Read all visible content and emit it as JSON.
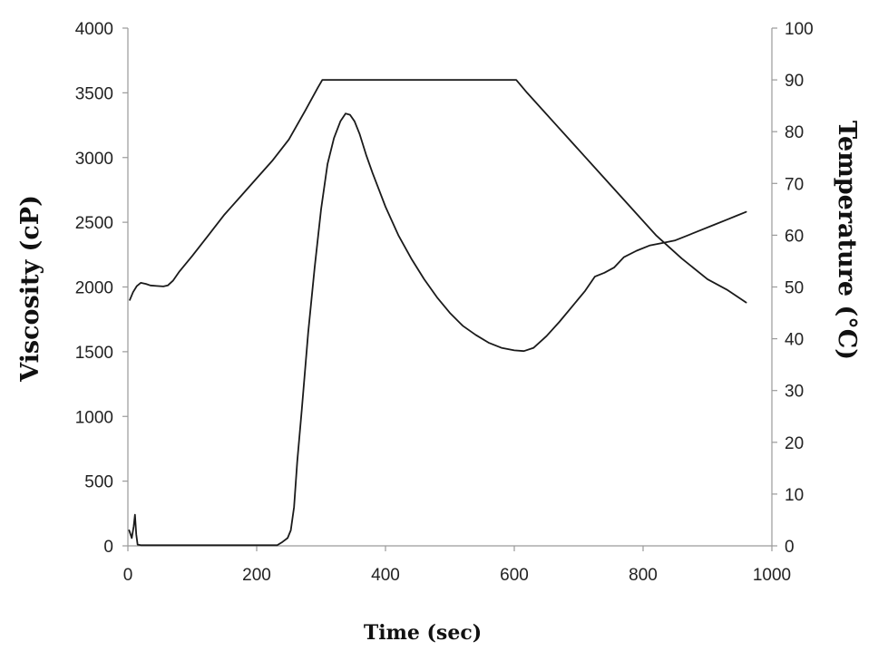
{
  "chart_data": {
    "type": "line",
    "title": "",
    "xlabel": "Time (sec)",
    "ylabel": "Viscosity (cP)",
    "y2label": "Temperature (°C)",
    "xlim": [
      0,
      1000
    ],
    "ylim": [
      0,
      4000
    ],
    "y2lim": [
      0,
      100
    ],
    "xticks": [
      0,
      200,
      400,
      600,
      800,
      1000
    ],
    "yticks": [
      0,
      500,
      1000,
      1500,
      2000,
      2500,
      3000,
      3500,
      4000
    ],
    "y2ticks": [
      0,
      10,
      20,
      30,
      40,
      50,
      60,
      70,
      80,
      90,
      100
    ],
    "grid": false,
    "legend": "none",
    "series": [
      {
        "axis": "left",
        "points": [
          [
            2,
            120
          ],
          [
            6,
            60
          ],
          [
            9,
            150
          ],
          [
            11,
            240
          ],
          [
            13,
            90
          ],
          [
            15,
            10
          ],
          [
            20,
            5
          ],
          [
            100,
            5
          ],
          [
            200,
            5
          ],
          [
            232,
            5
          ],
          [
            240,
            30
          ],
          [
            248,
            60
          ],
          [
            253,
            120
          ],
          [
            258,
            300
          ],
          [
            263,
            650
          ],
          [
            270,
            1050
          ],
          [
            280,
            1650
          ],
          [
            290,
            2150
          ],
          [
            300,
            2600
          ],
          [
            310,
            2950
          ],
          [
            320,
            3150
          ],
          [
            330,
            3280
          ],
          [
            338,
            3340
          ],
          [
            345,
            3330
          ],
          [
            352,
            3280
          ],
          [
            360,
            3180
          ],
          [
            370,
            3020
          ],
          [
            380,
            2880
          ],
          [
            390,
            2750
          ],
          [
            400,
            2620
          ],
          [
            420,
            2400
          ],
          [
            440,
            2220
          ],
          [
            460,
            2060
          ],
          [
            480,
            1920
          ],
          [
            500,
            1800
          ],
          [
            520,
            1700
          ],
          [
            540,
            1630
          ],
          [
            560,
            1570
          ],
          [
            580,
            1530
          ],
          [
            600,
            1510
          ],
          [
            615,
            1505
          ],
          [
            630,
            1530
          ],
          [
            650,
            1620
          ],
          [
            670,
            1730
          ],
          [
            690,
            1850
          ],
          [
            710,
            1970
          ],
          [
            725,
            2080
          ],
          [
            740,
            2110
          ],
          [
            755,
            2150
          ],
          [
            770,
            2230
          ],
          [
            790,
            2280
          ],
          [
            810,
            2320
          ],
          [
            830,
            2340
          ],
          [
            850,
            2360
          ],
          [
            870,
            2400
          ],
          [
            890,
            2440
          ],
          [
            910,
            2480
          ],
          [
            930,
            2520
          ],
          [
            945,
            2550
          ],
          [
            960,
            2580
          ]
        ]
      },
      {
        "axis": "right",
        "points": [
          [
            3,
            47.5
          ],
          [
            8,
            49.0
          ],
          [
            14,
            50.2
          ],
          [
            20,
            50.8
          ],
          [
            28,
            50.6
          ],
          [
            35,
            50.3
          ],
          [
            45,
            50.2
          ],
          [
            55,
            50.1
          ],
          [
            62,
            50.3
          ],
          [
            70,
            51.2
          ],
          [
            80,
            53.0
          ],
          [
            100,
            56.0
          ],
          [
            125,
            60.0
          ],
          [
            150,
            64.0
          ],
          [
            175,
            67.5
          ],
          [
            200,
            71.0
          ],
          [
            225,
            74.5
          ],
          [
            250,
            78.5
          ],
          [
            275,
            84.0
          ],
          [
            295,
            88.5
          ],
          [
            302,
            90.0
          ],
          [
            350,
            90.0
          ],
          [
            400,
            90.0
          ],
          [
            450,
            90.0
          ],
          [
            500,
            90.0
          ],
          [
            550,
            90.0
          ],
          [
            603,
            90.0
          ],
          [
            620,
            87.5
          ],
          [
            660,
            82.0
          ],
          [
            700,
            76.5
          ],
          [
            740,
            71.0
          ],
          [
            780,
            65.5
          ],
          [
            820,
            60.0
          ],
          [
            860,
            55.5
          ],
          [
            900,
            51.5
          ],
          [
            930,
            49.5
          ],
          [
            960,
            47.0
          ]
        ]
      }
    ]
  }
}
